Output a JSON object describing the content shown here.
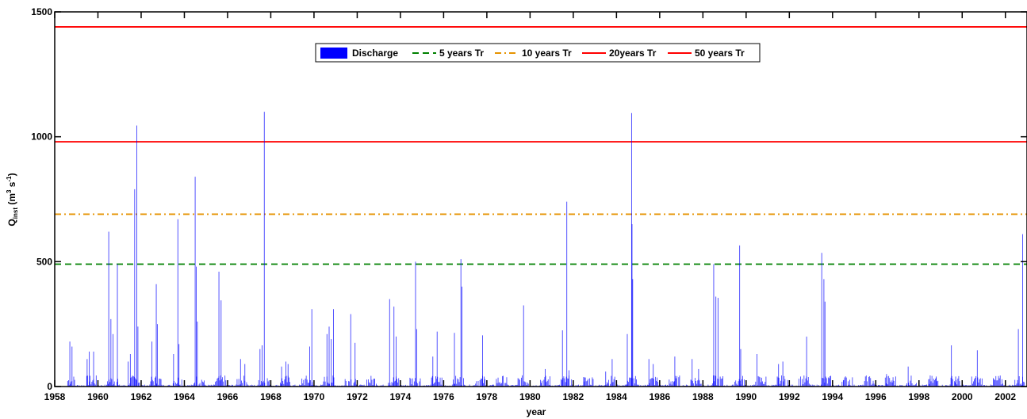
{
  "chart_data": {
    "type": "bar",
    "title": "",
    "xlabel": "year",
    "ylabel_main": "Q",
    "ylabel_sub": "inst",
    "ylabel_unit_open": " (m",
    "ylabel_unit_exp1": "3",
    "ylabel_unit_mid": " s",
    "ylabel_unit_exp2": "-1",
    "ylabel_unit_close": ")",
    "xlim": [
      1958,
      2003
    ],
    "ylim": [
      0,
      1500
    ],
    "x_ticks": [
      "1958",
      "1960",
      "1962",
      "1964",
      "1966",
      "1968",
      "1970",
      "1972",
      "1974",
      "1976",
      "1978",
      "1980",
      "1982",
      "1984",
      "1986",
      "1988",
      "1990",
      "1992",
      "1994",
      "1996",
      "1998",
      "2000",
      "2002"
    ],
    "y_ticks": [
      "0",
      "500",
      "1000",
      "1500"
    ],
    "grid": false,
    "legend_placement": "top-center",
    "series": [
      {
        "name": "Discharge",
        "kind": "bars",
        "color": "#0000ff",
        "points": [
          [
            1958.7,
            180
          ],
          [
            1958.8,
            160
          ],
          [
            1959.5,
            110
          ],
          [
            1959.6,
            140
          ],
          [
            1959.8,
            140
          ],
          [
            1960.5,
            620
          ],
          [
            1960.6,
            270
          ],
          [
            1960.7,
            210
          ],
          [
            1960.9,
            490
          ],
          [
            1961.4,
            100
          ],
          [
            1961.5,
            130
          ],
          [
            1961.7,
            790
          ],
          [
            1961.8,
            1045
          ],
          [
            1961.85,
            240
          ],
          [
            1962.5,
            180
          ],
          [
            1962.7,
            410
          ],
          [
            1962.75,
            250
          ],
          [
            1963.5,
            130
          ],
          [
            1963.7,
            670
          ],
          [
            1963.75,
            170
          ],
          [
            1964.5,
            840
          ],
          [
            1964.55,
            480
          ],
          [
            1964.6,
            260
          ],
          [
            1965.6,
            460
          ],
          [
            1965.7,
            345
          ],
          [
            1966.6,
            110
          ],
          [
            1966.8,
            90
          ],
          [
            1967.5,
            150
          ],
          [
            1967.6,
            165
          ],
          [
            1967.7,
            1100
          ],
          [
            1968.5,
            80
          ],
          [
            1968.7,
            100
          ],
          [
            1968.8,
            90
          ],
          [
            1969.8,
            160
          ],
          [
            1969.9,
            310
          ],
          [
            1970.6,
            210
          ],
          [
            1970.7,
            240
          ],
          [
            1970.8,
            190
          ],
          [
            1970.9,
            310
          ],
          [
            1971.7,
            290
          ],
          [
            1971.9,
            175
          ],
          [
            1972.8,
            30
          ],
          [
            1973.5,
            350
          ],
          [
            1973.7,
            320
          ],
          [
            1973.8,
            200
          ],
          [
            1974.7,
            500
          ],
          [
            1974.75,
            230
          ],
          [
            1975.5,
            120
          ],
          [
            1975.7,
            220
          ],
          [
            1976.5,
            215
          ],
          [
            1976.8,
            510
          ],
          [
            1976.85,
            400
          ],
          [
            1977.8,
            205
          ],
          [
            1979.7,
            325
          ],
          [
            1980.7,
            70
          ],
          [
            1981.5,
            225
          ],
          [
            1981.7,
            740
          ],
          [
            1981.8,
            65
          ],
          [
            1982.5,
            20
          ],
          [
            1983.5,
            60
          ],
          [
            1983.8,
            110
          ],
          [
            1984.5,
            210
          ],
          [
            1984.7,
            1095
          ],
          [
            1984.72,
            650
          ],
          [
            1984.75,
            430
          ],
          [
            1985.5,
            110
          ],
          [
            1985.7,
            90
          ],
          [
            1986.7,
            120
          ],
          [
            1987.5,
            110
          ],
          [
            1987.8,
            70
          ],
          [
            1988.5,
            490
          ],
          [
            1988.6,
            360
          ],
          [
            1988.7,
            355
          ],
          [
            1989.7,
            565
          ],
          [
            1989.75,
            150
          ],
          [
            1990.5,
            130
          ],
          [
            1991.5,
            90
          ],
          [
            1991.7,
            100
          ],
          [
            1992.8,
            200
          ],
          [
            1993.5,
            535
          ],
          [
            1993.6,
            430
          ],
          [
            1993.65,
            340
          ],
          [
            1994.5,
            25
          ],
          [
            1996.5,
            50
          ],
          [
            1996.8,
            25
          ],
          [
            1997.5,
            80
          ],
          [
            1998.5,
            30
          ],
          [
            1998.8,
            40
          ],
          [
            1999.5,
            165
          ],
          [
            1999.7,
            40
          ],
          [
            2000.7,
            145
          ],
          [
            2002.6,
            230
          ],
          [
            2002.8,
            610
          ]
        ]
      },
      {
        "name": "5 years Tr",
        "kind": "hline",
        "value": 490,
        "color": "#008000",
        "dash": "8,5"
      },
      {
        "name": "10 years Tr",
        "kind": "hline",
        "value": 690,
        "color": "#e69300",
        "dash": "8,4,2,4"
      },
      {
        "name": "20years Tr",
        "kind": "hline",
        "value": 980,
        "color": "#ff0000",
        "dash": ""
      },
      {
        "name": "50 years Tr",
        "kind": "hline",
        "value": 1440,
        "color": "#ff0000",
        "dash": ""
      }
    ]
  }
}
